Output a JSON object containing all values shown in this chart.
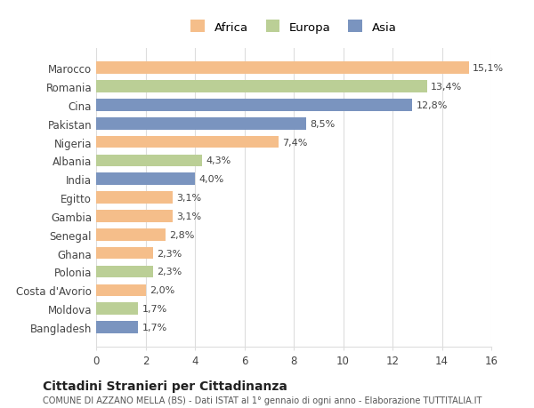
{
  "categories": [
    "Marocco",
    "Romania",
    "Cina",
    "Pakistan",
    "Nigeria",
    "Albania",
    "India",
    "Egitto",
    "Gambia",
    "Senegal",
    "Ghana",
    "Polonia",
    "Costa d'Avorio",
    "Moldova",
    "Bangladesh"
  ],
  "values": [
    15.1,
    13.4,
    12.8,
    8.5,
    7.4,
    4.3,
    4.0,
    3.1,
    3.1,
    2.8,
    2.3,
    2.3,
    2.0,
    1.7,
    1.7
  ],
  "continents": [
    "Africa",
    "Europa",
    "Asia",
    "Asia",
    "Africa",
    "Europa",
    "Asia",
    "Africa",
    "Africa",
    "Africa",
    "Africa",
    "Europa",
    "Africa",
    "Europa",
    "Asia"
  ],
  "colors": {
    "Africa": "#F5BE8A",
    "Europa": "#BBCF96",
    "Asia": "#7A94BF"
  },
  "legend_order": [
    "Africa",
    "Europa",
    "Asia"
  ],
  "xlim": [
    0,
    16
  ],
  "xticks": [
    0,
    2,
    4,
    6,
    8,
    10,
    12,
    14,
    16
  ],
  "title": "Cittadini Stranieri per Cittadinanza",
  "subtitle": "COMUNE DI AZZANO MELLA (BS) - Dati ISTAT al 1° gennaio di ogni anno - Elaborazione TUTTITALIA.IT",
  "background_color": "#ffffff",
  "grid_color": "#dddddd"
}
